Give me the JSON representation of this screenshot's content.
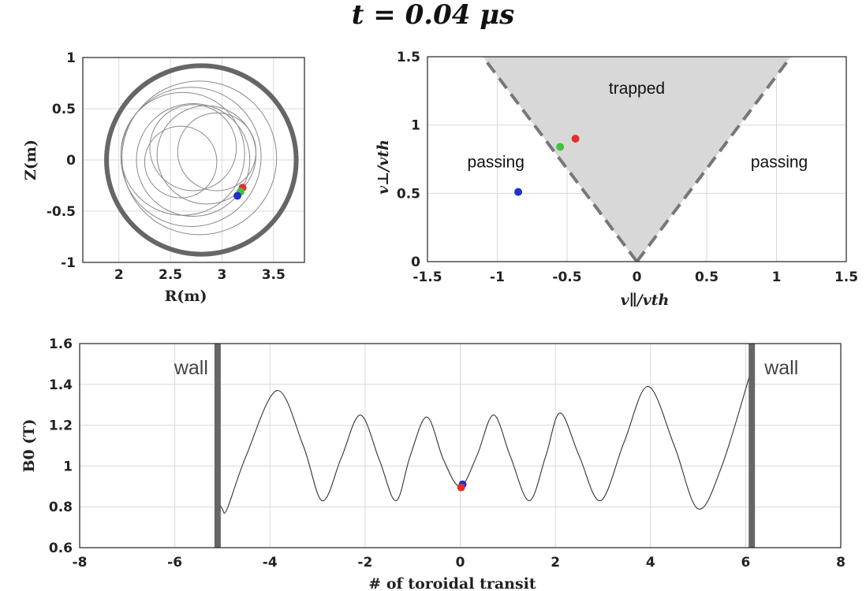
{
  "title": "t = 0.04 μs",
  "colors": {
    "red": "#e0302a",
    "green": "#3ec43e",
    "blue": "#1f2fd0",
    "trapped_fill": "#d8d8d8",
    "wall": "#666666"
  },
  "chart_data": [
    {
      "id": "poloidal",
      "type": "line",
      "xlabel": "R(m)",
      "ylabel": "Z(m)",
      "xlim": [
        1.65,
        3.8
      ],
      "ylim": [
        -1,
        1
      ],
      "xticks": [
        2,
        2.5,
        3,
        3.5
      ],
      "yticks": [
        -1,
        -0.5,
        0,
        0.5,
        1
      ],
      "grid": true,
      "wall": {
        "center": [
          2.8,
          0
        ],
        "radius": 0.92
      },
      "orbit_loops": [
        {
          "center": [
            2.78,
            0.02
          ],
          "radius": 0.75
        },
        {
          "center": [
            2.7,
            0.03
          ],
          "radius": 0.68
        },
        {
          "center": [
            2.72,
            0.0
          ],
          "radius": 0.55
        },
        {
          "center": [
            2.62,
            0.06
          ],
          "radius": 0.6
        },
        {
          "center": [
            2.85,
            0.05
          ],
          "radius": 0.48
        },
        {
          "center": [
            2.6,
            -0.02
          ],
          "radius": 0.35
        },
        {
          "center": [
            2.72,
            0.12
          ],
          "radius": 0.42
        },
        {
          "center": [
            2.95,
            0.08
          ],
          "radius": 0.38
        }
      ],
      "points": [
        {
          "color": "red",
          "R": 3.2,
          "Z": -0.27
        },
        {
          "color": "green",
          "R": 3.18,
          "Z": -0.31
        },
        {
          "color": "blue",
          "R": 3.15,
          "Z": -0.35
        }
      ]
    },
    {
      "id": "velocity",
      "type": "scatter",
      "xlabel": "v∥/vth",
      "ylabel": "v⊥/vth",
      "xlim": [
        -1.5,
        1.5
      ],
      "ylim": [
        0,
        1.5
      ],
      "xticks": [
        -1.5,
        -1,
        -0.5,
        0,
        0.5,
        1,
        1.5
      ],
      "yticks": [
        0,
        0.5,
        1,
        1.5
      ],
      "grid": true,
      "trapped_cone_slope": 1.36,
      "annotations": [
        {
          "text": "trapped",
          "x": 0,
          "y": 1.27
        },
        {
          "text": "passing",
          "x": -1.01,
          "y": 0.73
        },
        {
          "text": "passing",
          "x": 1.02,
          "y": 0.73
        }
      ],
      "points": [
        {
          "color": "red",
          "x": -0.44,
          "y": 0.9
        },
        {
          "color": "green",
          "x": -0.55,
          "y": 0.84
        },
        {
          "color": "blue",
          "x": -0.85,
          "y": 0.51
        }
      ]
    },
    {
      "id": "field",
      "type": "line",
      "xlabel": "# of toroidal transit",
      "ylabel": "B0 (T)",
      "xlim": [
        -8,
        8
      ],
      "ylim": [
        0.6,
        1.6
      ],
      "xticks": [
        -8,
        -6,
        -4,
        -2,
        0,
        2,
        4,
        6,
        8
      ],
      "yticks": [
        0.6,
        0.8,
        1,
        1.2,
        1.4,
        1.6
      ],
      "grid": true,
      "walls": [
        -5.1,
        6.13
      ],
      "wall_label": "wall",
      "series": [
        {
          "x": [
            -5.1,
            -5.0,
            -4.9,
            -4.5,
            -3.85,
            -3.3,
            -2.9,
            -2.5,
            -2.1,
            -1.7,
            -1.35,
            -1.05,
            -0.7,
            -0.35,
            0.0,
            0.35,
            0.7,
            1.05,
            1.45,
            1.8,
            2.1,
            2.5,
            2.95,
            3.45,
            3.95,
            4.5,
            5.0,
            5.5,
            6.13
          ],
          "y": [
            0.84,
            0.79,
            0.79,
            1.05,
            1.37,
            1.1,
            0.83,
            1.04,
            1.25,
            1.03,
            0.83,
            1.05,
            1.24,
            1.03,
            0.9,
            1.05,
            1.25,
            1.05,
            0.83,
            1.05,
            1.26,
            1.05,
            0.83,
            1.12,
            1.39,
            1.1,
            0.79,
            1.0,
            1.48
          ]
        }
      ],
      "points": [
        {
          "color": "blue",
          "x": 0.05,
          "y": 0.91
        },
        {
          "color": "red",
          "x": 0.02,
          "y": 0.895
        }
      ]
    }
  ]
}
